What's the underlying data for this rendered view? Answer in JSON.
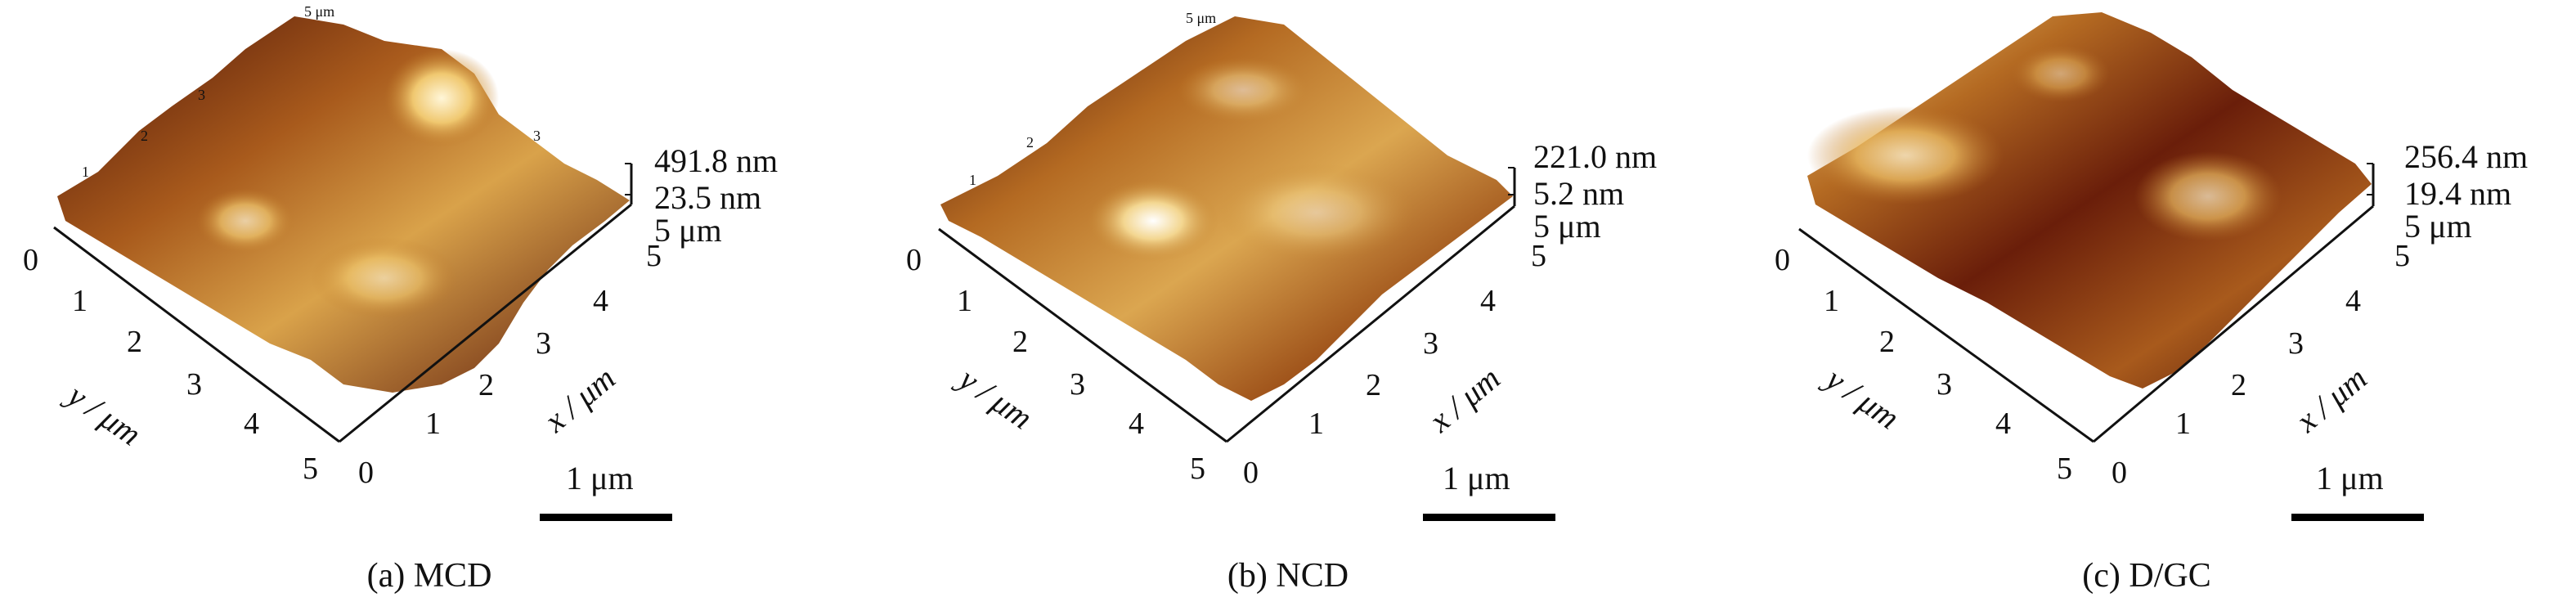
{
  "colors": {
    "surface_dark": "#3a0a05",
    "surface_mid": "#9a4a14",
    "surface_light": "#e6b45a",
    "surface_highlight": "#fff3cf",
    "axis": "#111111",
    "scale_bar": "#000000"
  },
  "panels": [
    {
      "id": "mcd",
      "caption": "(a) MCD",
      "z_max": "491.8 nm",
      "z_min": "23.5 nm",
      "z_range": "5 μm",
      "x_axis": {
        "name": "x / μm",
        "ticks": [
          "0",
          "1",
          "2",
          "3",
          "4",
          "5"
        ]
      },
      "y_axis": {
        "name": "y / μm",
        "ticks": [
          "0",
          "1",
          "2",
          "3",
          "4",
          "5"
        ]
      },
      "top_labels": [
        "5 μm",
        "3",
        "2",
        "1",
        "3"
      ],
      "scale_bar": "1 μm"
    },
    {
      "id": "ncd",
      "caption": "(b) NCD",
      "z_max": "221.0 nm",
      "z_min": "5.2 nm",
      "z_range": "5 μm",
      "x_axis": {
        "name": "x / μm",
        "ticks": [
          "0",
          "1",
          "2",
          "3",
          "4",
          "5"
        ]
      },
      "y_axis": {
        "name": "y / μm",
        "ticks": [
          "0",
          "1",
          "2",
          "3",
          "4",
          "5"
        ]
      },
      "top_labels": [
        "5 μm",
        "2",
        "1"
      ],
      "scale_bar": "1 μm"
    },
    {
      "id": "dgc",
      "caption": "(c) D/GC",
      "z_max": "256.4 nm",
      "z_min": "19.4 nm",
      "z_range": "5 μm",
      "x_axis": {
        "name": "x / μm",
        "ticks": [
          "0",
          "1",
          "2",
          "3",
          "4",
          "5"
        ]
      },
      "y_axis": {
        "name": "y / μm",
        "ticks": [
          "0",
          "1",
          "2",
          "3",
          "4",
          "5"
        ]
      },
      "top_labels": [],
      "scale_bar": "1 μm"
    }
  ]
}
